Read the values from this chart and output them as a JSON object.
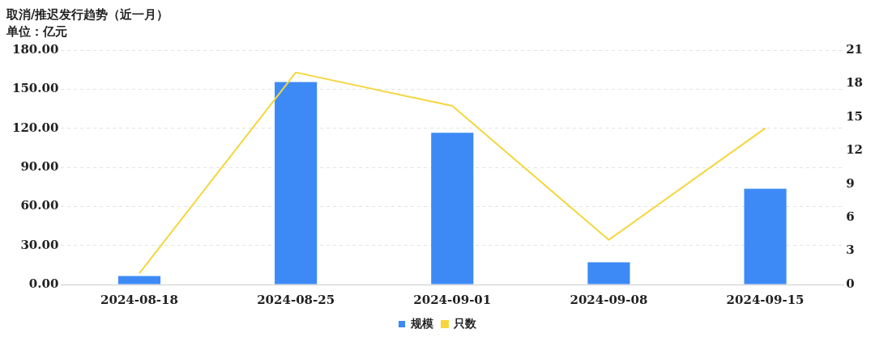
{
  "chart_data": {
    "type": "bar",
    "title": "取消/推迟发行趋势（近一月）",
    "subtitle": "单位：亿元",
    "categories": [
      "2024-08-18",
      "2024-08-25",
      "2024-09-01",
      "2024-09-08",
      "2024-09-15"
    ],
    "series": [
      {
        "name": "规模",
        "color": "#3d8af7",
        "values": [
          6.5,
          155.5,
          116.5,
          17,
          73.5
        ]
      },
      {
        "name": "只数",
        "type": "line",
        "axis": "y2",
        "color": "#f5d63d",
        "values": [
          1,
          19,
          16,
          4,
          14
        ]
      }
    ],
    "ylim": [
      0,
      180
    ],
    "yticks": [
      {
        "value": 0,
        "label": "0.00"
      },
      {
        "value": 30,
        "label": "30.00"
      },
      {
        "value": 60,
        "label": "60.00"
      },
      {
        "value": 90,
        "label": "90.00"
      },
      {
        "value": 120,
        "label": "120.00"
      },
      {
        "value": 150,
        "label": "150.00"
      },
      {
        "value": 180,
        "label": "180.00"
      }
    ],
    "y2lim": [
      0,
      21
    ],
    "y2ticks": [
      0,
      3,
      6,
      9,
      12,
      15,
      18,
      21
    ],
    "grid": "y",
    "legend": "bottom",
    "marker": "none"
  }
}
